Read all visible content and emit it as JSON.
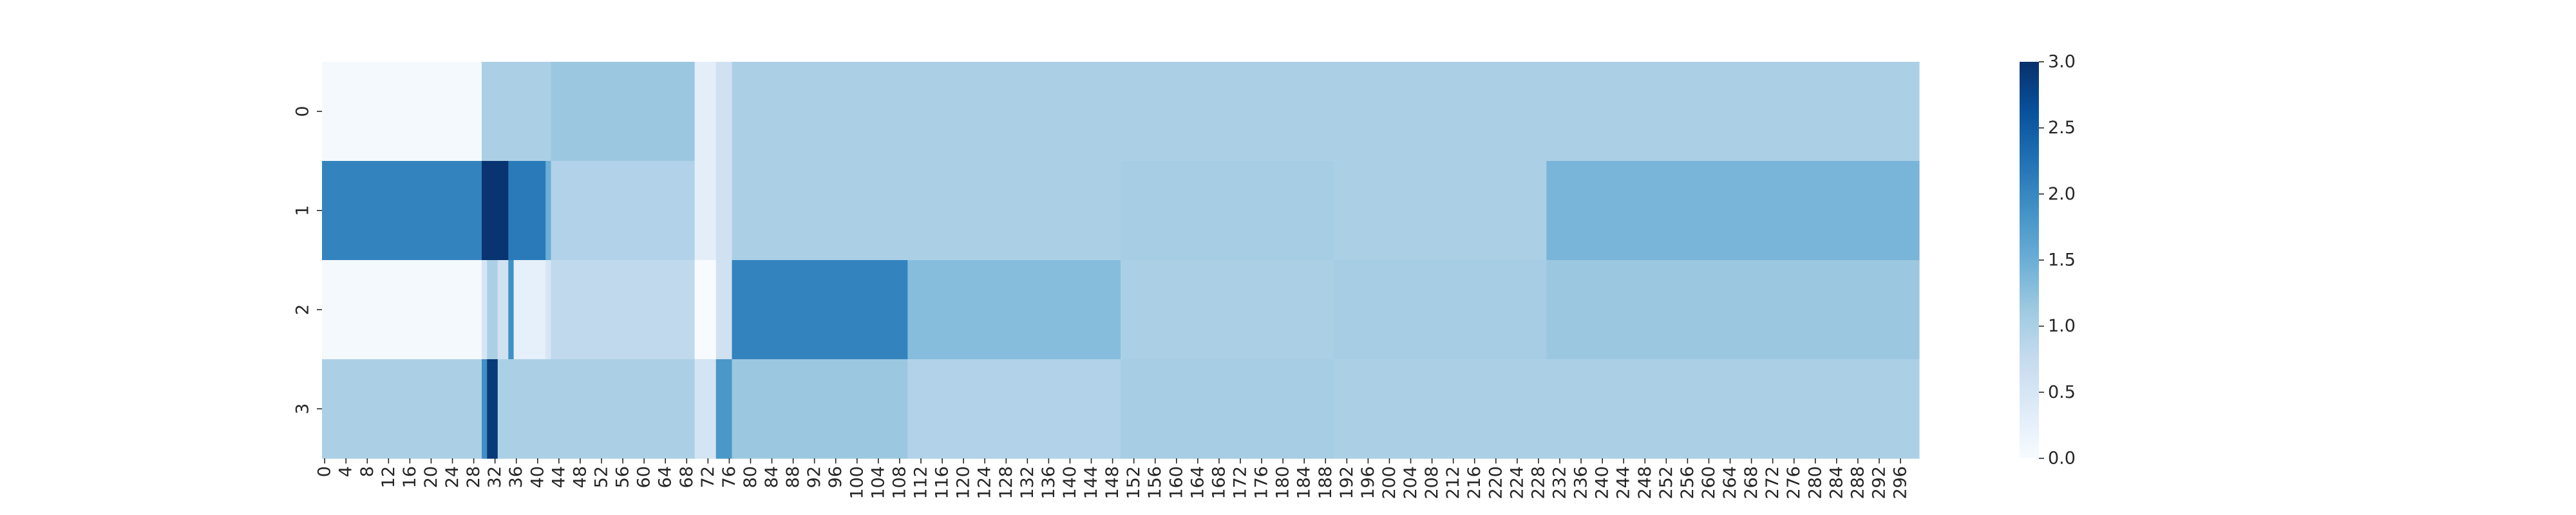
{
  "chart_data": {
    "type": "heatmap",
    "colormap": "Blues",
    "vmin": 0,
    "vmax": 3,
    "n_columns": 300,
    "rows": [
      "0",
      "1",
      "2",
      "3"
    ],
    "x_tick_labels": [
      "0",
      "4",
      "8",
      "12",
      "16",
      "20",
      "24",
      "28",
      "32",
      "36",
      "40",
      "44",
      "48",
      "52",
      "56",
      "60",
      "64",
      "68",
      "72",
      "76",
      "80",
      "84",
      "88",
      "92",
      "96",
      "100",
      "104",
      "108",
      "112",
      "116",
      "120",
      "124",
      "128",
      "132",
      "136",
      "140",
      "144",
      "148",
      "152",
      "156",
      "160",
      "164",
      "168",
      "172",
      "176",
      "180",
      "184",
      "188",
      "192",
      "196",
      "200",
      "204",
      "208",
      "212",
      "216",
      "220",
      "224",
      "228",
      "232",
      "236",
      "240",
      "244",
      "248",
      "252",
      "256",
      "260",
      "264",
      "268",
      "272",
      "276",
      "280",
      "284",
      "288",
      "292",
      "296"
    ],
    "y_tick_labels": [
      "0",
      "1",
      "2",
      "3"
    ],
    "colorbar_ticks": [
      "0.0",
      "0.5",
      "1.0",
      "1.5",
      "2.0",
      "2.5",
      "3.0"
    ],
    "colorbar_tick_values": [
      0,
      0.5,
      1.0,
      1.5,
      2.0,
      2.5,
      3.0
    ],
    "segments": [
      [
        {
          "from": 0,
          "to": 30,
          "value": 0.05
        },
        {
          "from": 30,
          "to": 43,
          "value": 1.0
        },
        {
          "from": 43,
          "to": 70,
          "value": 1.15
        },
        {
          "from": 70,
          "to": 74,
          "value": 0.3
        },
        {
          "from": 74,
          "to": 77,
          "value": 0.6
        },
        {
          "from": 77,
          "to": 150,
          "value": 1.0
        },
        {
          "from": 150,
          "to": 300,
          "value": 1.0
        }
      ],
      [
        {
          "from": 0,
          "to": 30,
          "value": 2.05
        },
        {
          "from": 30,
          "to": 35,
          "value": 2.95
        },
        {
          "from": 35,
          "to": 42,
          "value": 2.15
        },
        {
          "from": 42,
          "to": 43,
          "value": 1.5
        },
        {
          "from": 43,
          "to": 70,
          "value": 0.95
        },
        {
          "from": 70,
          "to": 74,
          "value": 0.3
        },
        {
          "from": 74,
          "to": 77,
          "value": 0.6
        },
        {
          "from": 77,
          "to": 150,
          "value": 1.0
        },
        {
          "from": 150,
          "to": 190,
          "value": 1.05
        },
        {
          "from": 190,
          "to": 230,
          "value": 1.0
        },
        {
          "from": 230,
          "to": 300,
          "value": 1.4
        }
      ],
      [
        {
          "from": 0,
          "to": 30,
          "value": 0.05
        },
        {
          "from": 30,
          "to": 31,
          "value": 0.5
        },
        {
          "from": 31,
          "to": 33,
          "value": 1.0
        },
        {
          "from": 33,
          "to": 35,
          "value": 0.6
        },
        {
          "from": 35,
          "to": 36,
          "value": 1.9
        },
        {
          "from": 36,
          "to": 42,
          "value": 0.25
        },
        {
          "from": 42,
          "to": 43,
          "value": 0.5
        },
        {
          "from": 43,
          "to": 70,
          "value": 0.8
        },
        {
          "from": 70,
          "to": 74,
          "value": 0.0
        },
        {
          "from": 74,
          "to": 77,
          "value": 0.6
        },
        {
          "from": 77,
          "to": 110,
          "value": 2.05
        },
        {
          "from": 110,
          "to": 150,
          "value": 1.3
        },
        {
          "from": 150,
          "to": 190,
          "value": 1.0
        },
        {
          "from": 190,
          "to": 230,
          "value": 1.05
        },
        {
          "from": 230,
          "to": 300,
          "value": 1.15
        }
      ],
      [
        {
          "from": 0,
          "to": 30,
          "value": 1.0
        },
        {
          "from": 30,
          "to": 31,
          "value": 1.9
        },
        {
          "from": 31,
          "to": 33,
          "value": 2.9
        },
        {
          "from": 33,
          "to": 70,
          "value": 1.0
        },
        {
          "from": 70,
          "to": 74,
          "value": 0.55
        },
        {
          "from": 74,
          "to": 77,
          "value": 1.8
        },
        {
          "from": 77,
          "to": 110,
          "value": 1.15
        },
        {
          "from": 110,
          "to": 150,
          "value": 0.95
        },
        {
          "from": 150,
          "to": 190,
          "value": 1.05
        },
        {
          "from": 190,
          "to": 300,
          "value": 1.0
        }
      ]
    ]
  }
}
